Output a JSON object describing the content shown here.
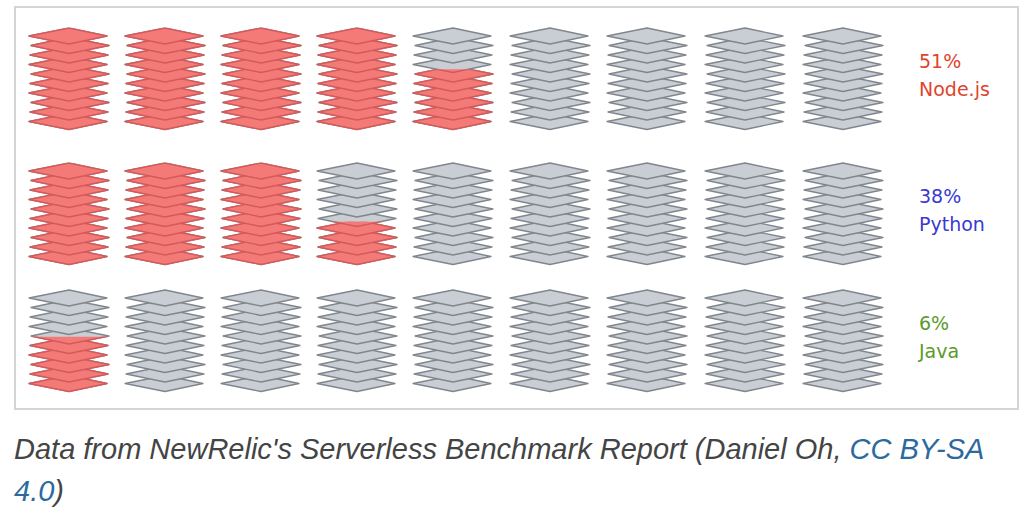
{
  "chart_data": {
    "type": "pictogram",
    "categories": [
      "Node.js",
      "Python",
      "Java"
    ],
    "values": [
      51,
      38,
      6
    ],
    "value_labels": [
      "51%",
      "38%",
      "6%"
    ],
    "color": "#f47a78",
    "ylim": [
      0,
      100
    ],
    "tick_labels": false,
    "data_labels": true
  },
  "caption": {
    "text": "Data from NewRelic's Serverless Benchmark Report (Daniel Oh, ",
    "link": "CC BY-SA 4.0",
    "end": ")"
  }
}
